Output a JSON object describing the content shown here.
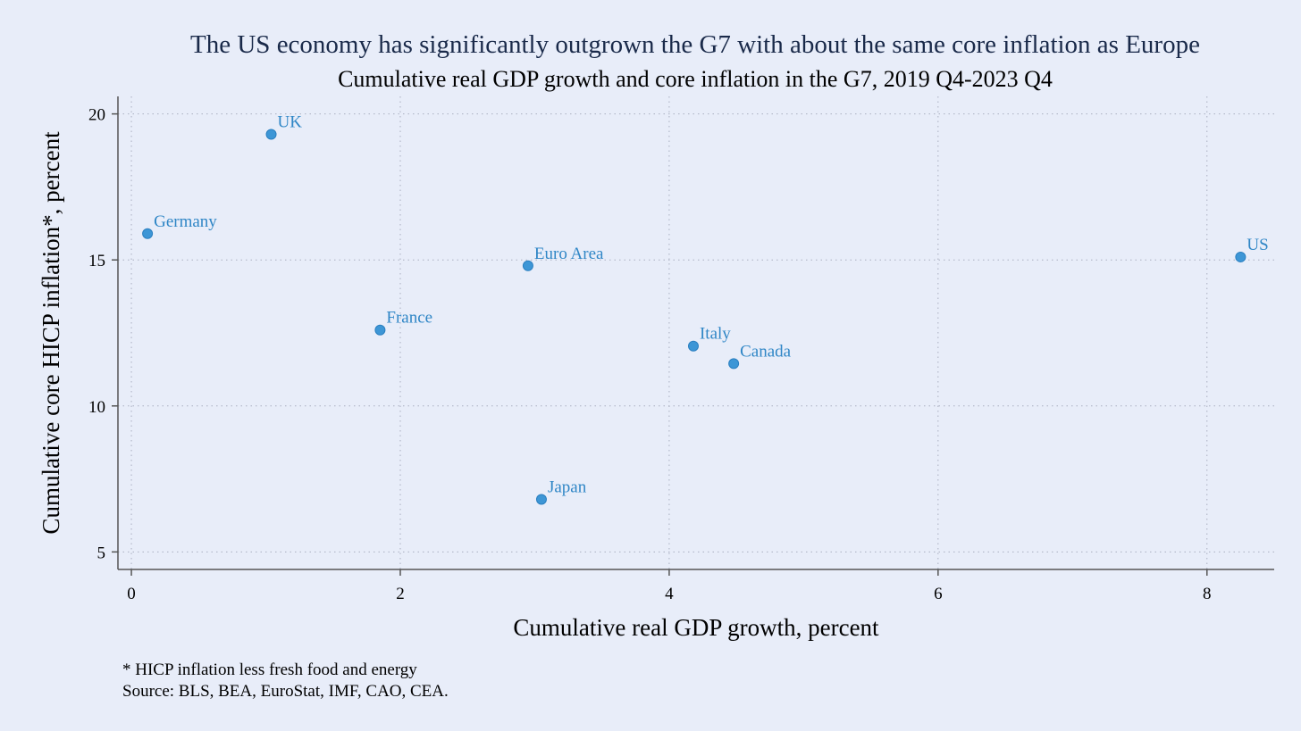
{
  "chart_data": {
    "type": "scatter",
    "title": "The US economy has significantly outgrown the G7 with about the same core inflation as Europe",
    "subtitle": "Cumulative real GDP growth and core inflation in the G7, 2019 Q4-2023 Q4",
    "xlabel": "Cumulative real GDP growth, percent",
    "ylabel": "Cumulative core HICP inflation*, percent",
    "xlim": [
      -0.1,
      8.5
    ],
    "ylim": [
      4.4,
      20.6
    ],
    "xticks": [
      0,
      2,
      4,
      6,
      8
    ],
    "yticks": [
      5,
      10,
      15,
      20
    ],
    "grid": true,
    "marker_color": "#3d96d6",
    "label_color": "#2f86c6",
    "points": [
      {
        "label": "UK",
        "x": 1.04,
        "y": 19.3
      },
      {
        "label": "Germany",
        "x": 0.12,
        "y": 15.9
      },
      {
        "label": "Euro Area",
        "x": 2.95,
        "y": 14.8
      },
      {
        "label": "US",
        "x": 8.25,
        "y": 15.1
      },
      {
        "label": "France",
        "x": 1.85,
        "y": 12.6
      },
      {
        "label": "Italy",
        "x": 4.18,
        "y": 12.05
      },
      {
        "label": "Canada",
        "x": 4.48,
        "y": 11.45
      },
      {
        "label": "Japan",
        "x": 3.05,
        "y": 6.8
      }
    ]
  },
  "notes": {
    "footnote": "* HICP inflation less fresh food and energy",
    "source": "Source: BLS, BEA, EuroStat, IMF, CAO, CEA."
  }
}
